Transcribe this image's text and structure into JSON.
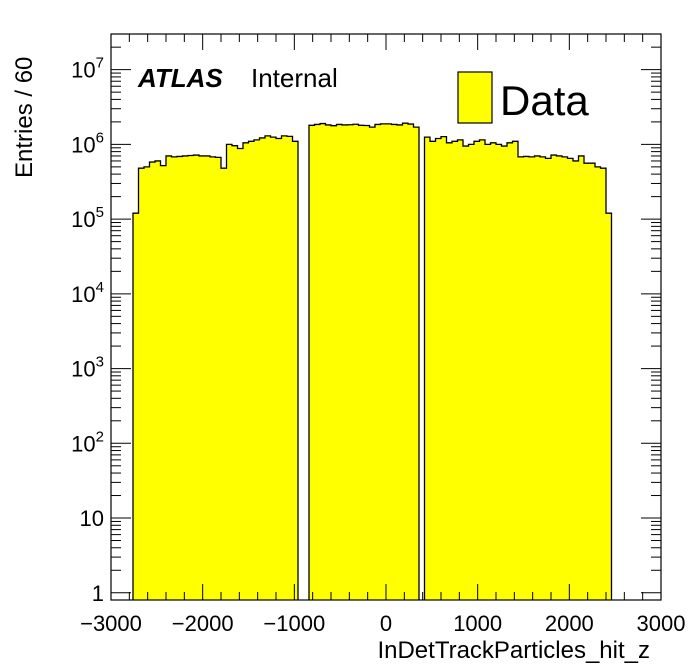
{
  "chart_data": {
    "type": "bar",
    "histogram": true,
    "xlabel": "InDetTrackParticles_hit_z",
    "ylabel": "Entries / 60",
    "xlim": [
      -3000,
      3000
    ],
    "ylim": [
      0.8,
      30000000
    ],
    "yscale": "log",
    "x_ticks": [
      -3000,
      -2000,
      -1000,
      0,
      1000,
      2000,
      3000
    ],
    "x_tick_labels": [
      "−3000",
      "−2000",
      "−1000",
      "0",
      "1000",
      "2000",
      "3000"
    ],
    "y_ticks": [
      {
        "value": 1,
        "label": "1",
        "exp": ""
      },
      {
        "value": 10,
        "label": "10",
        "exp": ""
      },
      {
        "value": 100,
        "label": "10",
        "exp": "2"
      },
      {
        "value": 1000,
        "label": "10",
        "exp": "3"
      },
      {
        "value": 10000,
        "label": "10",
        "exp": "4"
      },
      {
        "value": 100000,
        "label": "10",
        "exp": "5"
      },
      {
        "value": 1000000,
        "label": "10",
        "exp": "6"
      },
      {
        "value": 10000000,
        "label": "10",
        "exp": "7"
      }
    ],
    "grid": false,
    "legend_position": "top-right",
    "series": [
      {
        "name": "Data",
        "color": "#ffff00",
        "bin_width": 60,
        "bin_edges_start": -2760,
        "values": [
          120000,
          480000,
          500000,
          580000,
          600000,
          520000,
          700000,
          680000,
          690000,
          700000,
          710000,
          720000,
          700000,
          700000,
          680000,
          670000,
          480000,
          1000000,
          960000,
          880000,
          1050000,
          1100000,
          1150000,
          1220000,
          1300000,
          1250000,
          1200000,
          1300000,
          1280000,
          1100000,
          0,
          0,
          1800000,
          1850000,
          1900000,
          1820000,
          1780000,
          1850000,
          1820000,
          1830000,
          1860000,
          1800000,
          1790000,
          1700000,
          1850000,
          1880000,
          1880000,
          1850000,
          1820000,
          1920000,
          1870000,
          1700000,
          0,
          1250000,
          1100000,
          1200000,
          1270000,
          1050000,
          1100000,
          1150000,
          950000,
          1000000,
          1100000,
          1150000,
          1000000,
          1050000,
          1000000,
          950000,
          1050000,
          1100000,
          680000,
          690000,
          680000,
          700000,
          680000,
          650000,
          720000,
          700000,
          680000,
          650000,
          600000,
          700000,
          560000,
          560000,
          500000,
          480000,
          120000
        ]
      }
    ]
  },
  "annotation": {
    "experiment": "ATLAS",
    "status": "Internal"
  },
  "legend": {
    "label": "Data"
  }
}
